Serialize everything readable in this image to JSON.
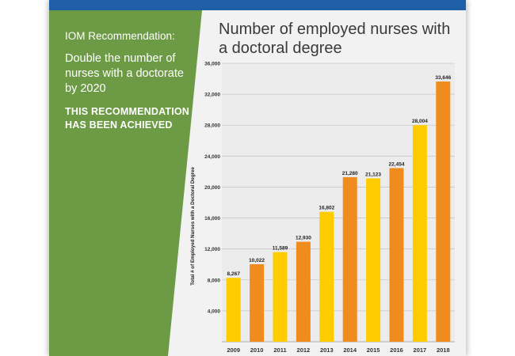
{
  "panel": {
    "label": "IOM Recommendation:",
    "recommendation": "Double the number of nurses with a doctorate by 2020",
    "status": "THIS RECOMMENDATION HAS BEEN ACHIEVED"
  },
  "colors": {
    "top_bar": "#1e5fa8",
    "panel": "#6d9a45",
    "bar_yellow": "#ffcc00",
    "bar_orange": "#f08c1e"
  },
  "chart_data": {
    "type": "bar",
    "title": "Number of employed nurses with a doctoral degree",
    "ylabel": "Total # of Employed Nurses with a Doctoral Degree",
    "xlabel": "",
    "categories": [
      "2009",
      "2010",
      "2011",
      "2012",
      "2013",
      "2014",
      "2015",
      "2016",
      "2017",
      "2018"
    ],
    "values": [
      8267,
      10022,
      11589,
      12930,
      16802,
      21280,
      21123,
      22454,
      28004,
      33646
    ],
    "data_labels": [
      "8,267",
      "10,022",
      "11,589",
      "12,930",
      "16,802",
      "21,280",
      "21,123",
      "22,454",
      "28,004",
      "33,646"
    ],
    "bar_colors": [
      "#ffcc00",
      "#f08c1e",
      "#ffcc00",
      "#f08c1e",
      "#ffcc00",
      "#f08c1e",
      "#ffcc00",
      "#f08c1e",
      "#ffcc00",
      "#f08c1e"
    ],
    "ylim": [
      0,
      36000
    ],
    "yticks": [
      4000,
      8000,
      12000,
      16000,
      20000,
      24000,
      28000,
      32000,
      36000
    ],
    "ytick_labels": [
      "4,000",
      "8,000",
      "12,000",
      "16,000",
      "20,000",
      "24,000",
      "28,000",
      "32,000",
      "36,000"
    ],
    "grid": true,
    "legend": "none"
  }
}
